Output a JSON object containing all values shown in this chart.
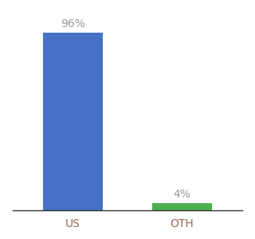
{
  "categories": [
    "US",
    "OTH"
  ],
  "values": [
    96,
    4
  ],
  "bar_colors": [
    "#4472C4",
    "#4CAF50"
  ],
  "label_color": "#999999",
  "axis_label_color": "#996655",
  "background_color": "#ffffff",
  "ylim": [
    0,
    107
  ],
  "bar_width": 0.55,
  "label_fontsize": 10,
  "tick_fontsize": 10
}
